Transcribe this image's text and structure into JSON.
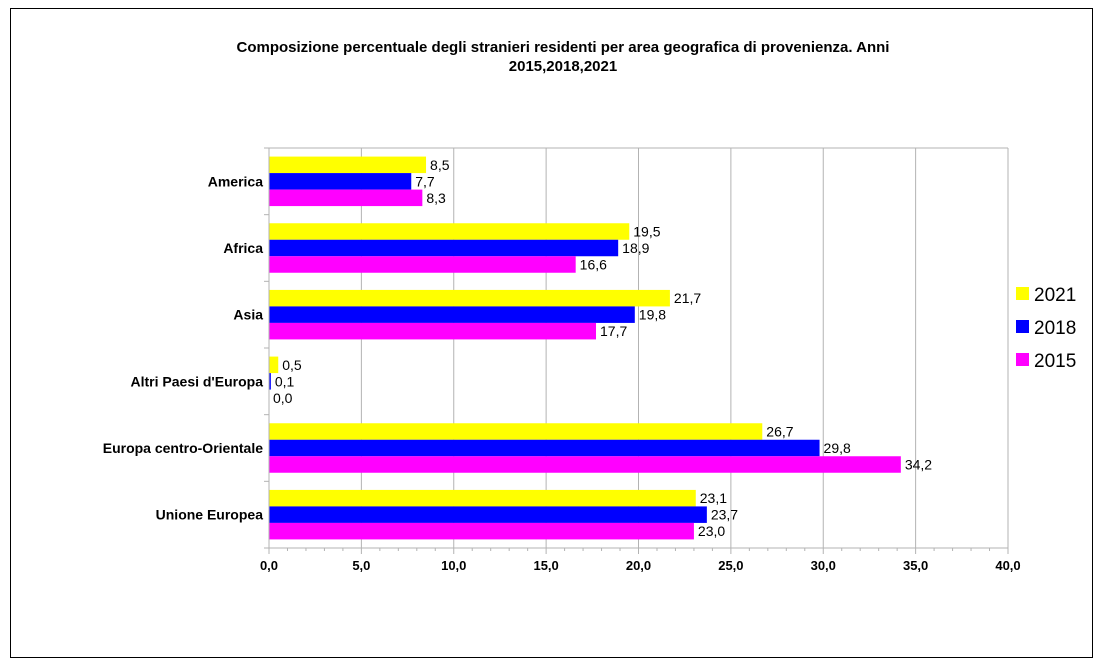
{
  "chart_data": {
    "type": "bar",
    "orientation": "horizontal",
    "title_lines": [
      "Composizione percentuale degli stranieri residenti per area geografica di provenienza. Anni",
      "2015,2018,2021"
    ],
    "categories": [
      "America",
      "Africa",
      "Asia",
      "Altri Paesi d'Europa",
      "Europa centro-Orientale",
      "Unione Europea"
    ],
    "series": [
      {
        "name": "2021",
        "color": "#ffff00",
        "values": [
          8.5,
          19.5,
          21.7,
          0.5,
          26.7,
          23.1
        ],
        "labels": [
          "8,5",
          "19,5",
          "21,7",
          "0,5",
          "26,7",
          "23,1"
        ]
      },
      {
        "name": "2018",
        "color": "#0000ff",
        "values": [
          7.7,
          18.9,
          19.8,
          0.1,
          29.8,
          23.7
        ],
        "labels": [
          "7,7",
          "18,9",
          "19,8",
          "0,1",
          "29,8",
          "23,7"
        ]
      },
      {
        "name": "2015",
        "color": "#ff00ff",
        "values": [
          8.3,
          16.6,
          17.7,
          0.0,
          34.2,
          23.0
        ],
        "labels": [
          "8,3",
          "16,6",
          "17,7",
          "0,0",
          "34,2",
          "23,0"
        ]
      }
    ],
    "xlim": [
      0,
      40
    ],
    "xticks": [
      0,
      5,
      10,
      15,
      20,
      25,
      30,
      35,
      40
    ],
    "xtick_labels": [
      "0,0",
      "5,0",
      "10,0",
      "15,0",
      "20,0",
      "25,0",
      "30,0",
      "35,0",
      "40,0"
    ],
    "grid": true,
    "legend_position": "right"
  }
}
